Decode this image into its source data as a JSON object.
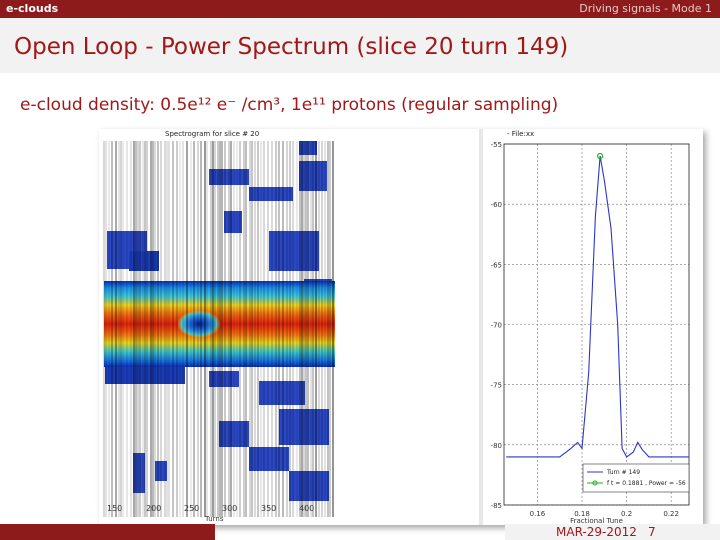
{
  "header": {
    "left": "e-clouds",
    "right": "Driving signals - Mode 1"
  },
  "slide": {
    "title": "Open Loop - Power Spectrum (slice 20 turn 149)",
    "subtitle": "e-cloud density: 0.5e¹² e⁻ /cm³, 1e¹¹ protons (regular sampling)",
    "date": "MAR-29-2012",
    "page": "7"
  },
  "spectrogram": {
    "title": "Spectrogram for slice # 20",
    "xlabel": "Turns",
    "xticks": [
      "150",
      "200",
      "250",
      "300",
      "350",
      "400"
    ]
  },
  "chart_data": {
    "type": "line",
    "title": "- File:xx",
    "xlabel": "Fractional Tune",
    "ylabel": "",
    "x": [
      0.146,
      0.15,
      0.16,
      0.17,
      0.175,
      0.178,
      0.18,
      0.183,
      0.186,
      0.1881,
      0.19,
      0.193,
      0.196,
      0.198,
      0.2,
      0.203,
      0.205,
      0.207,
      0.21,
      0.214,
      0.218,
      0.22,
      0.226,
      0.228
    ],
    "series": [
      {
        "name": "Turn # 149",
        "values": [
          -81,
          -81,
          -81,
          -81,
          -80.3,
          -79.8,
          -80.3,
          -74,
          -61,
          -56,
          -58,
          -62,
          -70,
          -80.3,
          -81,
          -80.6,
          -79.8,
          -80.4,
          -81,
          -81,
          -81,
          -81,
          -81,
          -81
        ],
        "color": "#2a35c9"
      }
    ],
    "marker": {
      "label": "f t = 0.1881 , Power = -56",
      "x": 0.1881,
      "y": -56,
      "color": "#22b222"
    },
    "xlim": [
      0.145,
      0.228
    ],
    "ylim": [
      -85,
      -55
    ],
    "xticks": [
      "0.16",
      "0.18",
      "0.2",
      "0.22"
    ],
    "yticks": [
      "-55",
      "-60",
      "-65",
      "-70",
      "-75",
      "-80",
      "-85"
    ],
    "grid": true,
    "legend_position": "bottom-right"
  }
}
